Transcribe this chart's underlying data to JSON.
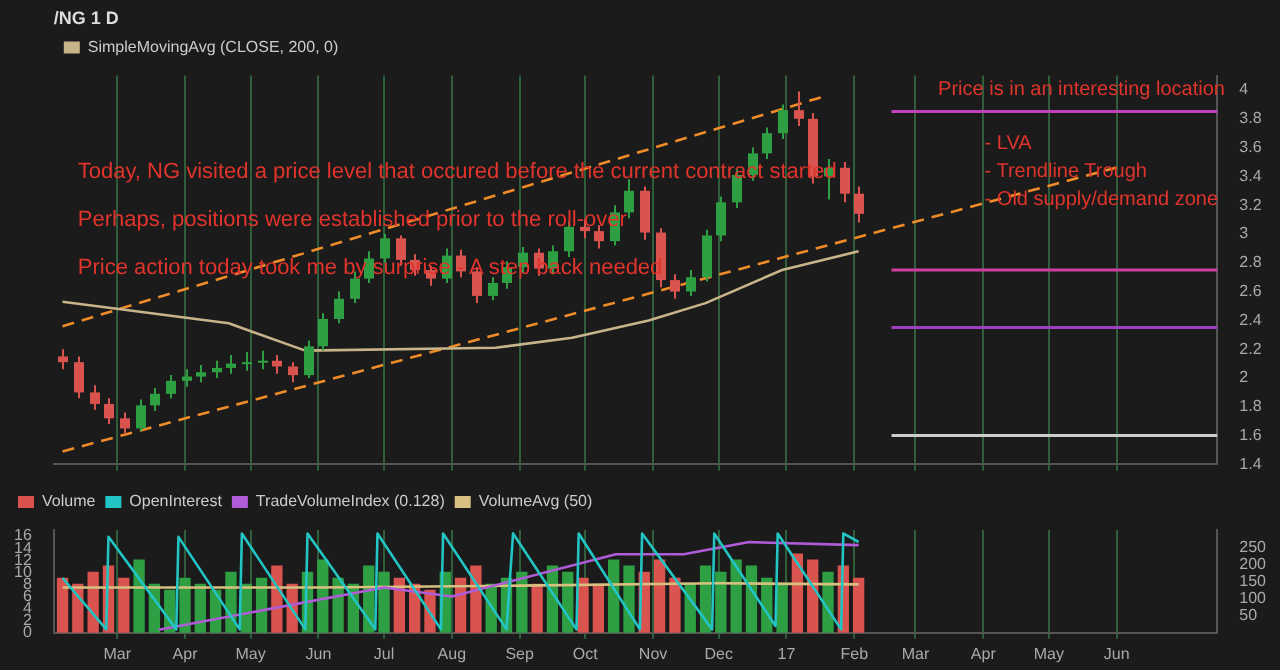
{
  "chart_data": [
    {
      "type": "candlestick",
      "title": "/NG 1 D",
      "marker": "none",
      "x": [
        "2016-02-05",
        "2016-02-12",
        "2016-02-19",
        "2016-02-26",
        "2016-03-04",
        "2016-03-11",
        "2016-03-18",
        "2016-03-25",
        "2016-04-01",
        "2016-04-08",
        "2016-04-15",
        "2016-04-22",
        "2016-04-29",
        "2016-05-06",
        "2016-05-13",
        "2016-05-20",
        "2016-05-27",
        "2016-06-03",
        "2016-06-10",
        "2016-06-17",
        "2016-06-24",
        "2016-07-01",
        "2016-07-08",
        "2016-07-15",
        "2016-07-22",
        "2016-07-29",
        "2016-08-05",
        "2016-08-12",
        "2016-08-19",
        "2016-08-26",
        "2016-09-02",
        "2016-09-09",
        "2016-09-16",
        "2016-09-23",
        "2016-09-30",
        "2016-10-07",
        "2016-10-14",
        "2016-10-21",
        "2016-10-28",
        "2016-11-04",
        "2016-11-11",
        "2016-11-18",
        "2016-11-25",
        "2016-12-02",
        "2016-12-09",
        "2016-12-16",
        "2016-12-23",
        "2016-12-30",
        "2017-01-06",
        "2017-01-13",
        "2017-01-20",
        "2017-01-27",
        "2017-02-03"
      ],
      "ohlc": [
        [
          2.15,
          2.2,
          2.06,
          2.11
        ],
        [
          2.11,
          2.15,
          1.86,
          1.9
        ],
        [
          1.9,
          1.95,
          1.78,
          1.82
        ],
        [
          1.82,
          1.86,
          1.68,
          1.72
        ],
        [
          1.72,
          1.76,
          1.61,
          1.65
        ],
        [
          1.65,
          1.85,
          1.63,
          1.81
        ],
        [
          1.81,
          1.93,
          1.77,
          1.89
        ],
        [
          1.89,
          2.02,
          1.86,
          1.98
        ],
        [
          1.98,
          2.06,
          1.94,
          2.01
        ],
        [
          2.01,
          2.09,
          1.97,
          2.04
        ],
        [
          2.04,
          2.12,
          2.0,
          2.07
        ],
        [
          2.07,
          2.16,
          2.03,
          2.1
        ],
        [
          2.1,
          2.18,
          2.05,
          2.11
        ],
        [
          2.11,
          2.19,
          2.06,
          2.12
        ],
        [
          2.12,
          2.16,
          2.03,
          2.08
        ],
        [
          2.08,
          2.11,
          1.97,
          2.02
        ],
        [
          2.02,
          2.26,
          2.0,
          2.22
        ],
        [
          2.22,
          2.45,
          2.19,
          2.41
        ],
        [
          2.41,
          2.6,
          2.38,
          2.55
        ],
        [
          2.55,
          2.74,
          2.52,
          2.69
        ],
        [
          2.69,
          2.88,
          2.66,
          2.83
        ],
        [
          2.83,
          3.0,
          2.8,
          2.97
        ],
        [
          2.97,
          2.99,
          2.78,
          2.82
        ],
        [
          2.82,
          2.86,
          2.71,
          2.75
        ],
        [
          2.75,
          2.78,
          2.64,
          2.69
        ],
        [
          2.69,
          2.9,
          2.66,
          2.85
        ],
        [
          2.85,
          2.89,
          2.7,
          2.74
        ],
        [
          2.74,
          2.77,
          2.52,
          2.57
        ],
        [
          2.57,
          2.7,
          2.54,
          2.66
        ],
        [
          2.66,
          2.81,
          2.62,
          2.77
        ],
        [
          2.77,
          2.91,
          2.73,
          2.87
        ],
        [
          2.87,
          2.9,
          2.71,
          2.76
        ],
        [
          2.76,
          2.92,
          2.72,
          2.88
        ],
        [
          2.88,
          3.09,
          2.84,
          3.05
        ],
        [
          3.05,
          3.1,
          2.97,
          3.02
        ],
        [
          3.02,
          3.06,
          2.9,
          2.95
        ],
        [
          2.95,
          3.2,
          2.92,
          3.15
        ],
        [
          3.15,
          3.38,
          3.11,
          3.3
        ],
        [
          3.3,
          3.33,
          2.96,
          3.01
        ],
        [
          3.01,
          3.04,
          2.63,
          2.68
        ],
        [
          2.68,
          2.72,
          2.55,
          2.6
        ],
        [
          2.6,
          2.75,
          2.57,
          2.7
        ],
        [
          2.7,
          3.03,
          2.67,
          2.99
        ],
        [
          2.99,
          3.26,
          2.95,
          3.22
        ],
        [
          3.22,
          3.45,
          3.18,
          3.41
        ],
        [
          3.41,
          3.6,
          3.37,
          3.56
        ],
        [
          3.56,
          3.74,
          3.52,
          3.7
        ],
        [
          3.7,
          3.9,
          3.66,
          3.86
        ],
        [
          3.86,
          3.99,
          3.75,
          3.8
        ],
        [
          3.8,
          3.84,
          3.35,
          3.4
        ],
        [
          3.4,
          3.52,
          3.24,
          3.46
        ],
        [
          3.46,
          3.5,
          3.22,
          3.28
        ],
        [
          3.28,
          3.33,
          3.08,
          3.14
        ]
      ],
      "series": [
        {
          "name": "SimpleMovingAvg (CLOSE, 200, 0)",
          "type": "line",
          "color": "#c8b48a",
          "x": [
            "2016-02-05",
            "2016-04-21",
            "2016-05-26",
            "2016-08-21",
            "2016-09-25",
            "2016-10-30",
            "2016-11-25",
            "2016-12-30",
            "2017-02-03"
          ],
          "values": [
            2.53,
            2.38,
            2.19,
            2.21,
            2.28,
            2.4,
            2.52,
            2.75,
            2.88
          ]
        },
        {
          "type": "line",
          "color": "#f08c28",
          "line_style": "dashed",
          "x": [
            "2016-02-05",
            "2017-01-17"
          ],
          "values": [
            2.36,
            3.95
          ]
        },
        {
          "type": "line",
          "color": "#f08c28",
          "line_style": "dashed",
          "x": [
            "2016-02-05",
            "2017-06-03"
          ],
          "values": [
            1.49,
            3.47
          ]
        }
      ],
      "xlim": [
        "2016-02-01",
        "2017-07-17"
      ],
      "xticks": [
        {
          "value": "2016-03-01",
          "label": null
        },
        {
          "value": "2016-04-01",
          "label": null
        },
        {
          "value": "2016-05-01",
          "label": null
        },
        {
          "value": "2016-06-01",
          "label": null
        },
        {
          "value": "2016-07-01",
          "label": null
        },
        {
          "value": "2016-08-01",
          "label": null
        },
        {
          "value": "2016-09-01",
          "label": null
        },
        {
          "value": "2016-10-01",
          "label": null
        },
        {
          "value": "2016-11-01",
          "label": null
        },
        {
          "value": "2016-12-01",
          "label": null
        },
        {
          "value": "2017-01-01",
          "label": null
        },
        {
          "value": "2017-02-01",
          "label": null
        },
        {
          "value": "2017-03-01",
          "label": null
        },
        {
          "value": "2017-04-01",
          "label": null
        },
        {
          "value": "2017-05-01",
          "label": null
        },
        {
          "value": "2017-06-01",
          "label": null
        }
      ],
      "ylim": [
        1.4,
        4.1
      ],
      "yticks": [
        1.4,
        1.6,
        1.8,
        2,
        2.2,
        2.4,
        2.6,
        2.8,
        3,
        3.2,
        3.4,
        3.6,
        3.8,
        4
      ],
      "tick_labels": "y",
      "grid": "x",
      "legend": "top left",
      "ref_lines": [
        {
          "axis": "y",
          "value": 3.85,
          "color": "#c040c0"
        },
        {
          "axis": "y",
          "value": 2.75,
          "color": "#d040a0"
        },
        {
          "axis": "y",
          "value": 2.35,
          "color": "#a040c0"
        },
        {
          "axis": "y",
          "value": 1.6,
          "color": "#cccccc"
        }
      ],
      "annotations": [
        "Today, NG visited a price level that occured before the current contract started",
        "Perhaps, positions were established prior to the roll-over",
        "Price action today took me by surprise - A step back needed",
        "Price is in an interesting location",
        "- LVA",
        "- Trendline Trough",
        "- Old supply/demand zone"
      ]
    },
    {
      "type": "bar",
      "marker": "none",
      "x": [
        "2016-02-05",
        "2016-02-12",
        "2016-02-19",
        "2016-02-26",
        "2016-03-04",
        "2016-03-11",
        "2016-03-18",
        "2016-03-25",
        "2016-04-01",
        "2016-04-08",
        "2016-04-15",
        "2016-04-22",
        "2016-04-29",
        "2016-05-06",
        "2016-05-13",
        "2016-05-20",
        "2016-05-27",
        "2016-06-03",
        "2016-06-10",
        "2016-06-17",
        "2016-06-24",
        "2016-07-01",
        "2016-07-08",
        "2016-07-15",
        "2016-07-22",
        "2016-07-29",
        "2016-08-05",
        "2016-08-12",
        "2016-08-19",
        "2016-08-26",
        "2016-09-02",
        "2016-09-09",
        "2016-09-16",
        "2016-09-23",
        "2016-09-30",
        "2016-10-07",
        "2016-10-14",
        "2016-10-21",
        "2016-10-28",
        "2016-11-04",
        "2016-11-11",
        "2016-11-18",
        "2016-11-25",
        "2016-12-02",
        "2016-12-09",
        "2016-12-16",
        "2016-12-23",
        "2016-12-30",
        "2017-01-06",
        "2017-01-13",
        "2017-01-20",
        "2017-01-27",
        "2017-02-03"
      ],
      "series": [
        {
          "name": "Volume",
          "colors": [
            "#d9534f",
            "#d9534f",
            "#d9534f",
            "#d9534f",
            "#d9534f",
            "#2ea043",
            "#2ea043",
            "#2ea043",
            "#2ea043",
            "#2ea043",
            "#2ea043",
            "#2ea043",
            "#2ea043",
            "#2ea043",
            "#d9534f",
            "#d9534f",
            "#2ea043",
            "#2ea043",
            "#2ea043",
            "#2ea043",
            "#2ea043",
            "#2ea043",
            "#d9534f",
            "#d9534f",
            "#d9534f",
            "#2ea043",
            "#d9534f",
            "#d9534f",
            "#2ea043",
            "#2ea043",
            "#2ea043",
            "#d9534f",
            "#2ea043",
            "#2ea043",
            "#d9534f",
            "#d9534f",
            "#2ea043",
            "#2ea043",
            "#d9534f",
            "#d9534f",
            "#d9534f",
            "#2ea043",
            "#2ea043",
            "#2ea043",
            "#2ea043",
            "#2ea043",
            "#2ea043",
            "#2ea043",
            "#d9534f",
            "#d9534f",
            "#2ea043",
            "#d9534f",
            "#d9534f"
          ],
          "values": [
            9,
            8,
            10,
            11,
            9,
            12,
            8,
            7,
            9,
            8,
            7,
            10,
            8,
            9,
            11,
            8,
            10,
            12,
            9,
            8,
            11,
            10,
            9,
            8,
            7,
            10,
            9,
            11,
            8,
            9,
            10,
            8,
            11,
            10,
            9,
            8,
            12,
            11,
            10,
            12,
            9,
            8,
            11,
            10,
            12,
            11,
            9,
            8,
            13,
            12,
            10,
            11,
            9
          ]
        },
        {
          "name": "OpenInterest",
          "type": "line",
          "axis": "y2",
          "color": "#22c4c4",
          "x": [
            "2016-02-05",
            "2016-02-25",
            "2016-02-26",
            "2016-03-28",
            "2016-03-29",
            "2016-04-26",
            "2016-04-27",
            "2016-05-26",
            "2016-05-27",
            "2016-06-27",
            "2016-06-28",
            "2016-07-27",
            "2016-07-28",
            "2016-08-26",
            "2016-08-29",
            "2016-09-27",
            "2016-09-28",
            "2016-10-26",
            "2016-10-27",
            "2016-11-28",
            "2016-11-29",
            "2016-12-27",
            "2016-12-28",
            "2017-01-26",
            "2017-01-27",
            "2017-02-03"
          ],
          "values": [
            160,
            10,
            280,
            10,
            280,
            10,
            290,
            10,
            290,
            10,
            290,
            10,
            290,
            10,
            290,
            10,
            290,
            10,
            290,
            10,
            290,
            20,
            290,
            10,
            290,
            265
          ]
        },
        {
          "name": "TradeVolumeIndex (0.128)",
          "type": "line",
          "color": "#b05cd8",
          "x": [
            "2016-03-20",
            "2016-07-01",
            "2016-08-01",
            "2016-10-15",
            "2016-11-15",
            "2016-12-15",
            "2017-02-03"
          ],
          "values": [
            0.5,
            7.5,
            6,
            13,
            13,
            15,
            14.5
          ]
        },
        {
          "name": "VolumeAvg (50)",
          "type": "line",
          "color": "#d8c080",
          "x": [
            "2016-02-05",
            "2016-06-01",
            "2016-09-01",
            "2016-12-01",
            "2017-02-03"
          ],
          "values": [
            7.5,
            7.5,
            7.8,
            8.2,
            8
          ]
        }
      ],
      "xlim": [
        "2016-02-01",
        "2017-07-17"
      ],
      "xticks": [
        {
          "value": "2016-03-01",
          "label": "Mar"
        },
        {
          "value": "2016-04-01",
          "label": "Apr"
        },
        {
          "value": "2016-05-01",
          "label": "May"
        },
        {
          "value": "2016-06-01",
          "label": "Jun"
        },
        {
          "value": "2016-07-01",
          "label": "Jul"
        },
        {
          "value": "2016-08-01",
          "label": "Aug"
        },
        {
          "value": "2016-09-01",
          "label": "Sep"
        },
        {
          "value": "2016-10-01",
          "label": "Oct"
        },
        {
          "value": "2016-11-01",
          "label": "Nov"
        },
        {
          "value": "2016-12-01",
          "label": "Dec"
        },
        {
          "value": "2017-01-01",
          "label": "17"
        },
        {
          "value": "2017-02-01",
          "label": "Feb"
        },
        {
          "value": "2017-03-01",
          "label": "Mar"
        },
        {
          "value": "2017-04-01",
          "label": "Apr"
        },
        {
          "value": "2017-05-01",
          "label": "May"
        },
        {
          "value": "2017-06-01",
          "label": "Jun"
        }
      ],
      "ylim": [
        0,
        17
      ],
      "yticks": [
        0,
        2,
        4,
        6,
        8,
        10,
        12,
        14,
        16
      ],
      "y2lim": [
        0,
        300
      ],
      "y2ticks": [
        50,
        100,
        150,
        200,
        250
      ],
      "grid": "x",
      "legend": "top left"
    }
  ]
}
